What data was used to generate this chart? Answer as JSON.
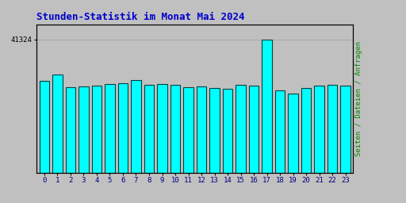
{
  "title": "Stunden-Statistik im Monat Mai 2024",
  "title_color": "#0000cc",
  "title_fontsize": 9,
  "ylabel_right": "Seiten / Dateien / Anfragen",
  "ylabel_right_color": "#008800",
  "ytick_label": "41324",
  "ytick_value": 41324,
  "background_color": "#c0c0c0",
  "plot_bg_color": "#c0c0c0",
  "bar_face_color": "#00ffff",
  "bar_edge_color": "#004040",
  "bar_width": 0.75,
  "categories": [
    0,
    1,
    2,
    3,
    4,
    5,
    6,
    7,
    8,
    9,
    10,
    11,
    12,
    13,
    14,
    15,
    16,
    17,
    18,
    19,
    20,
    21,
    22,
    23
  ],
  "values": [
    28500,
    30500,
    26500,
    26800,
    27000,
    27500,
    27800,
    28800,
    27200,
    27500,
    27200,
    26500,
    26800,
    26200,
    26000,
    27200,
    27000,
    41324,
    25500,
    24500,
    26200,
    27000,
    27200,
    27000
  ],
  "ylim_max": 46000,
  "figsize": [
    5.12,
    2.56
  ],
  "dpi": 100,
  "border_color": "#000000",
  "grid_color": "#aaaaaa"
}
